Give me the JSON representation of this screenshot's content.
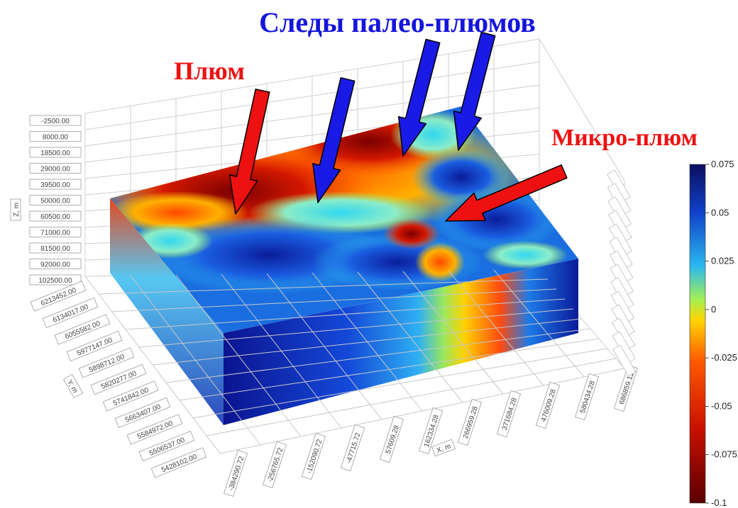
{
  "annotations": {
    "paleo_plumes": "Следы палео-плюмов",
    "plume": "Плюм",
    "micro_plume": "Микро-плюм"
  },
  "colors": {
    "red_label": "#ee1111",
    "blue_label": "#1515dd",
    "arrow_red": "#ee1111",
    "arrow_blue": "#1a1ae6"
  },
  "axes": {
    "z_title": "Z, m",
    "z_ticks": [
      "-2500.00",
      "8000.00",
      "18500.00",
      "29000.00",
      "39500.00",
      "50000.00",
      "60500.00",
      "71000.00",
      "81500.00",
      "92000.00",
      "102500.00"
    ],
    "y_title": "Y, m",
    "y_ticks": [
      "6213452.00",
      "6134017.00",
      "6055582.00",
      "5977147.00",
      "5898712.00",
      "5820277.00",
      "5741842.00",
      "5663407.00",
      "5584972.00",
      "5506537.00",
      "5428102.00"
    ],
    "x_title": "X, m",
    "x_ticks": [
      "-384290.72",
      "-256765.72",
      "-152090.72",
      "-47715.72",
      "57609.28",
      "162334.28",
      "266959.28",
      "371684.28",
      "476009.28",
      "580434.28",
      "686859.11"
    ]
  },
  "colorbar": {
    "ticks": [
      "0.075",
      "0.05",
      "0.025",
      "0",
      "-0.025",
      "-0.05",
      "-0.075",
      "-0.1"
    ],
    "min": -0.1,
    "max": 0.075,
    "stops": [
      "#0b0f5e",
      "#1040c8",
      "#2ab8f0",
      "#a6ef52",
      "#ffd400",
      "#ff5a00",
      "#c81000",
      "#5a0000"
    ]
  }
}
